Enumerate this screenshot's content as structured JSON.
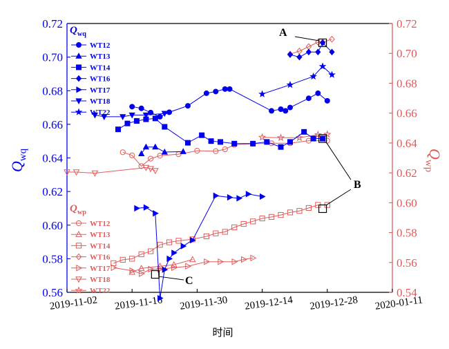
{
  "chart_data": {
    "type": "scatter",
    "xlabel": "时间",
    "ylabel_left": "Q_wq",
    "ylabel_right": "Q_wp",
    "x_range": [
      "2019-11-02",
      "2020-01-11"
    ],
    "x_ticks": [
      "2019-11-02",
      "2019-11-16",
      "2019-11-30",
      "2019-12-14",
      "2019-12-28",
      "2020-01-11"
    ],
    "ylim_left": [
      0.56,
      0.72
    ],
    "ylim_right": [
      0.54,
      0.72
    ],
    "yticks_left": [
      "0.56",
      "0.58",
      "0.60",
      "0.62",
      "0.64",
      "0.66",
      "0.68",
      "0.70",
      "0.72"
    ],
    "yticks_right": [
      "0.54",
      "0.56",
      "0.58",
      "0.60",
      "0.62",
      "0.64",
      "0.66",
      "0.68",
      "0.70",
      "0.72"
    ],
    "grid": false,
    "colors": {
      "left_axis": "#0000ee",
      "right_axis": "#e05a5a"
    },
    "legend_wq": {
      "title": "Qwq",
      "title_main": "Q",
      "title_sub": "wq",
      "placement": "top-left",
      "entries": [
        "WT12",
        "WT13",
        "WT14",
        "WT16",
        "WT17",
        "WT18",
        "WT22"
      ]
    },
    "legend_wp": {
      "title": "Qwp",
      "title_main": "Q",
      "title_sub": "wp",
      "placement": "bottom-left",
      "entries": [
        "WT12",
        "WT13",
        "WT14",
        "WT16",
        "WT17",
        "WT18",
        "WT22"
      ]
    },
    "axis_label_left": {
      "main": "Q",
      "sub": "wq"
    },
    "axis_label_right": {
      "main": "Q",
      "sub": "wp"
    },
    "series_wq": [
      {
        "name": "WT12",
        "marker": "circle",
        "points": [
          [
            "2019-11-16",
            0.6705
          ],
          [
            "2019-11-18",
            0.6695
          ],
          [
            "2019-11-20",
            0.667
          ],
          [
            "2019-11-22",
            0.6645
          ],
          [
            "2019-11-24",
            0.6672
          ],
          [
            "2019-11-28",
            0.671
          ],
          [
            "2019-12-02",
            0.6785
          ],
          [
            "2019-12-04",
            0.6795
          ],
          [
            "2019-12-06",
            0.681
          ],
          [
            "2019-12-07",
            0.681
          ],
          [
            "2019-12-16",
            0.668
          ],
          [
            "2019-12-18",
            0.669
          ],
          [
            "2019-12-19",
            0.668
          ],
          [
            "2019-12-20",
            0.67
          ],
          [
            "2019-12-24",
            0.6755
          ],
          [
            "2019-12-26",
            0.6785
          ],
          [
            "2019-12-28",
            0.674
          ]
        ]
      },
      {
        "name": "WT13",
        "marker": "triangle-up",
        "points": [
          [
            "2019-11-18",
            0.6425
          ],
          [
            "2019-11-19",
            0.6465
          ],
          [
            "2019-11-21",
            0.6465
          ],
          [
            "2019-11-23",
            0.6435
          ],
          [
            "2019-11-27",
            0.6438
          ]
        ]
      },
      {
        "name": "WT14",
        "marker": "square",
        "points": [
          [
            "2019-11-13",
            0.657
          ],
          [
            "2019-11-15",
            0.6605
          ],
          [
            "2019-11-17",
            0.662
          ],
          [
            "2019-11-19",
            0.663
          ],
          [
            "2019-11-21",
            0.6635
          ],
          [
            "2019-11-23",
            0.6585
          ],
          [
            "2019-11-28",
            0.649
          ],
          [
            "2019-12-01",
            0.6535
          ],
          [
            "2019-12-03",
            0.65
          ],
          [
            "2019-12-05",
            0.6495
          ],
          [
            "2019-12-08",
            0.6485
          ],
          [
            "2019-12-12",
            0.6485
          ],
          [
            "2019-12-15",
            0.6495
          ],
          [
            "2019-12-18",
            0.6465
          ],
          [
            "2019-12-20",
            0.6495
          ],
          [
            "2019-12-23",
            0.6555
          ],
          [
            "2019-12-25",
            0.6515
          ],
          [
            "2019-12-27",
            0.6515
          ]
        ]
      },
      {
        "name": "WT16",
        "marker": "diamond",
        "points": [
          [
            "2019-12-20",
            0.7015
          ],
          [
            "2019-12-22",
            0.7
          ],
          [
            "2019-12-24",
            0.703
          ],
          [
            "2019-12-26",
            0.703
          ],
          [
            "2019-12-27",
            0.7085
          ],
          [
            "2019-12-29",
            0.703
          ]
        ]
      },
      {
        "name": "WT17",
        "marker": "triangle-right",
        "points": [
          [
            "2019-11-17",
            0.61
          ],
          [
            "2019-11-19",
            0.6105
          ],
          [
            "2019-11-21",
            0.607
          ],
          [
            "2019-11-22",
            0.5565
          ],
          [
            "2019-11-23",
            0.5735
          ],
          [
            "2019-11-24",
            0.58
          ],
          [
            "2019-11-25",
            0.5835
          ],
          [
            "2019-11-27",
            0.5875
          ],
          [
            "2019-11-29",
            0.591
          ],
          [
            "2019-12-04",
            0.6175
          ],
          [
            "2019-12-07",
            0.6165
          ],
          [
            "2019-12-09",
            0.616
          ],
          [
            "2019-12-11",
            0.6185
          ],
          [
            "2019-12-14",
            0.617
          ]
        ]
      },
      {
        "name": "WT18",
        "marker": "triangle-down",
        "points": [
          [
            "2019-11-08",
            0.6655
          ],
          [
            "2019-11-10",
            0.6645
          ],
          [
            "2019-11-14",
            0.6645
          ],
          [
            "2019-11-16",
            0.6655
          ],
          [
            "2019-11-19",
            0.6655
          ],
          [
            "2019-11-23",
            0.6665
          ]
        ]
      },
      {
        "name": "WT22",
        "marker": "star",
        "points": [
          [
            "2019-12-14",
            0.678
          ],
          [
            "2019-12-20",
            0.6835
          ],
          [
            "2019-12-25",
            0.6885
          ],
          [
            "2019-12-27",
            0.6945
          ],
          [
            "2019-12-29",
            0.6895
          ]
        ]
      }
    ],
    "series_wp": [
      {
        "name": "WT12",
        "marker": "circle-open",
        "points": [
          [
            "2019-11-14",
            0.6338
          ],
          [
            "2019-11-16",
            0.6317
          ],
          [
            "2019-11-18",
            0.6245
          ],
          [
            "2019-11-20",
            0.6295
          ],
          [
            "2019-11-22",
            0.6315
          ],
          [
            "2019-11-26",
            0.6325
          ],
          [
            "2019-11-30",
            0.6348
          ],
          [
            "2019-12-04",
            0.6345
          ],
          [
            "2019-12-06",
            0.6358
          ],
          [
            "2019-12-08",
            0.6388
          ],
          [
            "2019-12-12",
            0.6395
          ],
          [
            "2019-12-16",
            0.6398
          ],
          [
            "2019-12-20",
            0.6398
          ],
          [
            "2019-12-24",
            0.6415
          ],
          [
            "2019-12-28",
            0.6415
          ]
        ]
      },
      {
        "name": "WT13",
        "marker": "triangle-up-open",
        "points": [
          [
            "2019-11-16",
            0.5535
          ],
          [
            "2019-11-18",
            0.556
          ],
          [
            "2019-11-22",
            0.5575
          ],
          [
            "2019-11-25",
            0.5585
          ],
          [
            "2019-11-29",
            0.562
          ]
        ]
      },
      {
        "name": "WT14",
        "marker": "square-open",
        "points": [
          [
            "2019-11-12",
            0.5595
          ],
          [
            "2019-11-14",
            0.5618
          ],
          [
            "2019-11-16",
            0.5625
          ],
          [
            "2019-11-18",
            0.5655
          ],
          [
            "2019-11-20",
            0.5675
          ],
          [
            "2019-11-22",
            0.5718
          ],
          [
            "2019-11-24",
            0.5735
          ],
          [
            "2019-11-26",
            0.5745
          ],
          [
            "2019-11-29",
            0.5755
          ],
          [
            "2019-12-02",
            0.5775
          ],
          [
            "2019-12-04",
            0.5795
          ],
          [
            "2019-12-06",
            0.5805
          ],
          [
            "2019-12-08",
            0.5835
          ],
          [
            "2019-12-10",
            0.5858
          ],
          [
            "2019-12-12",
            0.5875
          ],
          [
            "2019-12-14",
            0.5895
          ],
          [
            "2019-12-16",
            0.5905
          ],
          [
            "2019-12-18",
            0.5918
          ],
          [
            "2019-12-20",
            0.5935
          ],
          [
            "2019-12-22",
            0.5945
          ],
          [
            "2019-12-24",
            0.5965
          ],
          [
            "2019-12-26",
            0.5985
          ],
          [
            "2019-12-28",
            0.5985
          ]
        ]
      },
      {
        "name": "WT16",
        "marker": "diamond-open",
        "points": [
          [
            "2019-12-20",
            0.6995
          ],
          [
            "2019-12-22",
            0.7015
          ],
          [
            "2019-12-24",
            0.7045
          ],
          [
            "2019-12-26",
            0.7075
          ],
          [
            "2019-12-27",
            0.7075
          ],
          [
            "2019-12-29",
            0.7095
          ]
        ]
      },
      {
        "name": "WT17",
        "marker": "triangle-right-open",
        "points": [
          [
            "2019-11-12",
            0.5565
          ],
          [
            "2019-11-16",
            0.5545
          ],
          [
            "2019-11-18",
            0.5525
          ],
          [
            "2019-11-20",
            0.5555
          ],
          [
            "2019-11-22",
            0.5555
          ],
          [
            "2019-11-25",
            0.5565
          ],
          [
            "2019-11-28",
            0.5575
          ],
          [
            "2019-12-02",
            0.5605
          ],
          [
            "2019-12-05",
            0.5605
          ],
          [
            "2019-12-08",
            0.5605
          ],
          [
            "2019-12-10",
            0.562
          ],
          [
            "2019-12-12",
            0.563
          ]
        ]
      },
      {
        "name": "WT18",
        "marker": "triangle-down-open",
        "points": [
          [
            "2019-11-02",
            0.6205
          ],
          [
            "2019-11-04",
            0.6205
          ],
          [
            "2019-11-08",
            0.6198
          ],
          [
            "2019-11-19",
            0.6235
          ],
          [
            "2019-11-20",
            0.6228
          ],
          [
            "2019-11-21",
            0.6215
          ]
        ]
      },
      {
        "name": "WT22",
        "marker": "star-open",
        "points": [
          [
            "2019-12-14",
            0.6438
          ],
          [
            "2019-12-18",
            0.6435
          ],
          [
            "2019-12-22",
            0.6435
          ],
          [
            "2019-12-26",
            0.6455
          ],
          [
            "2019-12-28",
            0.6458
          ]
        ]
      }
    ],
    "annotations": [
      {
        "label": "A",
        "series": "Qwq WT16",
        "at": [
          "2019-12-27",
          0.7085
        ]
      },
      {
        "label": "B",
        "series": "Qwq WT14",
        "at": [
          "2019-12-27",
          0.6515
        ]
      },
      {
        "label": "B",
        "series": "Qwp WT14",
        "at": [
          "2019-12-27",
          0.596
        ]
      },
      {
        "label": "C",
        "series": "Qwp WT17",
        "at": [
          "2019-11-21",
          0.552
        ]
      }
    ]
  }
}
